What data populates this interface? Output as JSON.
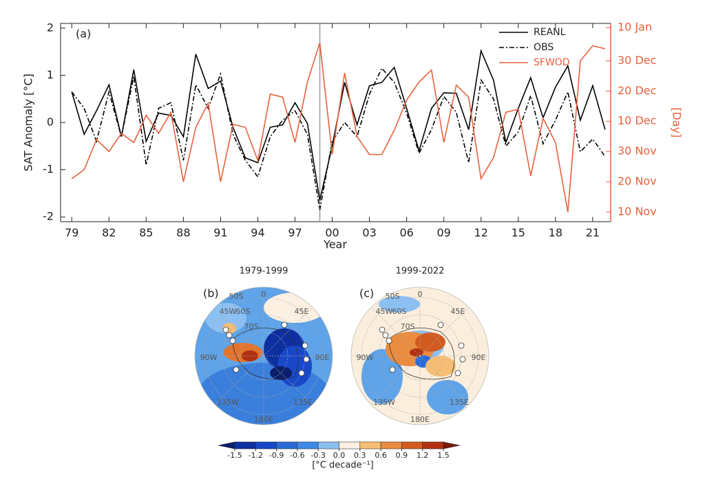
{
  "chart_data": {
    "type": "line",
    "annotation": "(a)",
    "x_label": "Year",
    "y_label": "SAT Anomaly [°C]",
    "y2_label": "[Day]",
    "x": [
      1979,
      1980,
      1981,
      1982,
      1983,
      1984,
      1985,
      1986,
      1987,
      1988,
      1989,
      1990,
      1991,
      1992,
      1993,
      1994,
      1995,
      1996,
      1997,
      1998,
      1999,
      2000,
      2001,
      2002,
      2003,
      2004,
      2005,
      2006,
      2007,
      2008,
      2009,
      2010,
      2011,
      2012,
      2013,
      2014,
      2015,
      2016,
      2017,
      2018,
      2019,
      2020,
      2021,
      2022
    ],
    "series": [
      {
        "name": "REANL",
        "color": "#000000",
        "dash": "solid",
        "values": [
          0.65,
          -0.25,
          0.25,
          0.8,
          -0.3,
          1.12,
          -0.4,
          0.2,
          0.15,
          -0.3,
          1.45,
          0.72,
          0.88,
          -0.1,
          -0.75,
          -0.85,
          -0.1,
          -0.05,
          0.42,
          -0.02,
          -1.65,
          -0.5,
          0.85,
          -0.05,
          0.78,
          0.85,
          1.17,
          0.3,
          -0.6,
          0.3,
          0.63,
          0.62,
          -0.15,
          1.52,
          0.9,
          -0.42,
          0.3,
          0.95,
          0.1,
          0.75,
          1.2,
          0.05,
          0.78,
          -0.15
        ]
      },
      {
        "name": "OBS",
        "color": "#000000",
        "dash": "dashdot",
        "values": [
          0.65,
          0.3,
          -0.4,
          0.65,
          -0.3,
          0.98,
          -0.9,
          0.3,
          0.42,
          -0.8,
          0.8,
          0.3,
          1.03,
          -0.25,
          -0.8,
          -1.15,
          -0.3,
          0.05,
          0.25,
          -0.25,
          -1.85,
          -0.4,
          0,
          -0.3,
          0.6,
          1.15,
          0.85,
          0.2,
          -0.65,
          -0.15,
          0.55,
          0.22,
          -0.85,
          0.9,
          0.5,
          -0.5,
          -0.2,
          0.57,
          -0.45,
          0.05,
          0.65,
          -0.62,
          -0.35,
          -0.72
        ]
      },
      {
        "name": "SFWOD",
        "color": "#e8603c",
        "dash": "solid",
        "axis": "y2",
        "values": [
          21,
          24,
          34,
          30,
          36,
          33,
          42,
          36,
          43,
          20,
          38,
          46,
          20,
          39,
          38,
          27,
          49,
          48,
          33,
          53,
          66,
          29,
          56,
          35,
          29,
          29,
          37,
          47,
          53,
          57,
          33,
          52,
          48,
          21,
          28,
          43,
          44,
          22,
          41,
          33,
          10,
          60,
          65,
          64
        ]
      }
    ],
    "xlim": [
      1978.1,
      2022.45
    ],
    "xticks": [
      {
        "value": 1979,
        "label": "79"
      },
      {
        "value": 1982,
        "label": "82"
      },
      {
        "value": 1985,
        "label": "85"
      },
      {
        "value": 1988,
        "label": "88"
      },
      {
        "value": 1991,
        "label": "91"
      },
      {
        "value": 1994,
        "label": "94"
      },
      {
        "value": 1997,
        "label": "97"
      },
      {
        "value": 2000,
        "label": "00"
      },
      {
        "value": 2003,
        "label": "03"
      },
      {
        "value": 2006,
        "label": "06"
      },
      {
        "value": 2009,
        "label": "09"
      },
      {
        "value": 2012,
        "label": "12"
      },
      {
        "value": 2015,
        "label": "15"
      },
      {
        "value": 2018,
        "label": "18"
      },
      {
        "value": 2021,
        "label": "21"
      }
    ],
    "ylim": [
      -2.1,
      2.1
    ],
    "yticks": [
      -2,
      -1,
      0,
      1,
      2
    ],
    "y2lim": [
      6.8,
      72.4
    ],
    "y2ticks": [
      {
        "value": 10,
        "label": "10 Nov"
      },
      {
        "value": 20,
        "label": "20 Nov"
      },
      {
        "value": 30,
        "label": "30 Nov"
      },
      {
        "value": 40,
        "label": "10 Dec"
      },
      {
        "value": 50,
        "label": "20 Dec"
      },
      {
        "value": 60,
        "label": "30 Dec"
      },
      {
        "value": 71,
        "label": "10 Jan"
      }
    ],
    "y2color": "#e8603c",
    "vline": 1999,
    "legend": "upper right"
  },
  "maps": [
    {
      "title": "1979-1999",
      "label": "(b)",
      "grid_labels": [
        "50S",
        "0",
        "45E",
        "45W",
        "60S",
        "70S",
        "90W",
        "90E",
        "135W",
        "135E",
        "180E"
      ]
    },
    {
      "title": "1999-2022",
      "label": "(c)",
      "grid_labels": [
        "50S",
        "0",
        "45E",
        "45W",
        "60S",
        "70S",
        "90W",
        "90E",
        "135W",
        "135E",
        "180E"
      ]
    }
  ],
  "colorbar": {
    "label": "[°C decade⁻¹]",
    "ticks": [
      -1.5,
      -1.2,
      -0.9,
      -0.6,
      -0.3,
      {
        "value": 0,
        "label": "0.0"
      },
      0.3,
      0.6,
      0.9,
      1.2,
      1.5
    ],
    "colors": [
      "#0a1f6b",
      "#0d2fa0",
      "#1848c8",
      "#2a6ad8",
      "#3f8ae6",
      "#8cc0f2",
      "#fbf0e2",
      "#f6bd74",
      "#ea8c3e",
      "#d35a1f",
      "#b1300f",
      "#7b1808"
    ]
  }
}
